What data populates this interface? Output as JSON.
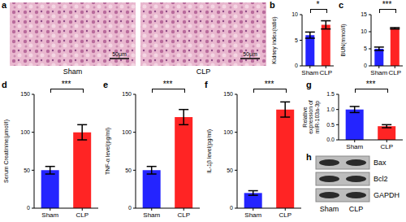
{
  "panel_a": {
    "panel_label": "a",
    "images": [
      {
        "label": "Sham",
        "scale_bar": "50μm"
      },
      {
        "label": "CLP",
        "scale_bar": "50μm"
      }
    ]
  },
  "chart_data": [
    {
      "type": "bar",
      "panel_label": "b",
      "y_label": "Kidney index(ratio)",
      "categories": [
        "Sham",
        "CLP"
      ],
      "values": [
        6,
        8
      ],
      "errors": [
        0.6,
        0.8
      ],
      "colors": [
        "#2424ff",
        "#ff2424"
      ],
      "ylim": [
        0,
        10
      ],
      "yticks": [
        0,
        5,
        10
      ],
      "annotations": [
        "*"
      ]
    },
    {
      "type": "bar",
      "panel_label": "c",
      "y_label": "BUN(mmol/l)",
      "categories": [
        "Sham",
        "CLP"
      ],
      "values": [
        5,
        11
      ],
      "errors": [
        0.5,
        0.2
      ],
      "colors": [
        "#2424ff",
        "#ff2424"
      ],
      "ylim": [
        0,
        15
      ],
      "yticks": [
        0,
        5,
        10,
        15
      ],
      "annotations": [
        "***"
      ]
    },
    {
      "type": "bar",
      "panel_label": "d",
      "y_label": "Serum Creatinine(μmol/l)",
      "categories": [
        "Sham",
        "CLP"
      ],
      "values": [
        50,
        100
      ],
      "errors": [
        5,
        10
      ],
      "colors": [
        "#2424ff",
        "#ff2424"
      ],
      "ylim": [
        0,
        150
      ],
      "yticks": [
        0,
        50,
        100,
        150
      ],
      "annotations": [
        "***"
      ]
    },
    {
      "type": "bar",
      "panel_label": "e",
      "y_label": "TNF-α level(pg/ml)",
      "categories": [
        "Sham",
        "CLP"
      ],
      "values": [
        50,
        120
      ],
      "errors": [
        5,
        10
      ],
      "colors": [
        "#2424ff",
        "#ff2424"
      ],
      "ylim": [
        0,
        150
      ],
      "yticks": [
        0,
        50,
        100,
        150
      ],
      "annotations": [
        "***"
      ]
    },
    {
      "type": "bar",
      "panel_label": "f",
      "y_label": "IL-1β level(pg/ml)",
      "categories": [
        "Sham",
        "CLP"
      ],
      "values": [
        20,
        130
      ],
      "errors": [
        3,
        10
      ],
      "colors": [
        "#2424ff",
        "#ff2424"
      ],
      "ylim": [
        0,
        150
      ],
      "yticks": [
        0,
        50,
        100,
        150
      ],
      "annotations": [
        "***"
      ]
    },
    {
      "type": "bar",
      "panel_label": "g",
      "y_label": "Relative expression of miR-103a-3p",
      "categories": [
        "Sham",
        "CLP"
      ],
      "values": [
        1.0,
        0.45
      ],
      "errors": [
        0.1,
        0.05
      ],
      "colors": [
        "#2424ff",
        "#ff2424"
      ],
      "ylim": [
        0,
        1.5
      ],
      "yticks": [
        {
          "value": 0,
          "label": "0.0"
        },
        {
          "value": 0.5,
          "label": "0.5"
        },
        {
          "value": 1,
          "label": "1.0"
        },
        {
          "value": 1.5,
          "label": "1.5"
        }
      ],
      "annotations": [
        "***"
      ]
    }
  ],
  "panel_h": {
    "panel_label": "h",
    "rows": [
      "Bax",
      "Bcl2",
      "GAPDH"
    ],
    "columns": [
      "Sham",
      "CLP"
    ]
  }
}
